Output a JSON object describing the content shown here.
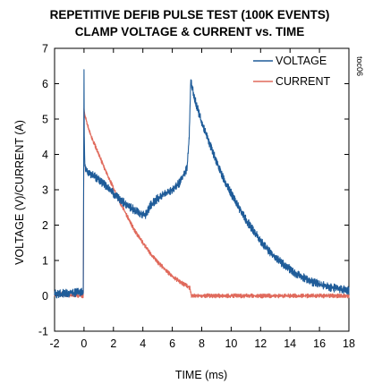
{
  "chart_data": {
    "type": "line",
    "title": "REPETITIVE DEFIB PULSE TEST (100K EVENTS)",
    "subtitle": "CLAMP VOLTAGE & CURRENT vs. TIME",
    "xlabel": "TIME (ms)",
    "ylabel": "VOLTAGE (V)/CURRENT (A)",
    "xlim": [
      -2,
      18
    ],
    "ylim": [
      -1,
      7
    ],
    "xticks": [
      "-2",
      "0",
      "2",
      "4",
      "6",
      "8",
      "10",
      "12",
      "14",
      "16",
      "18"
    ],
    "yticks": [
      "-1",
      "0",
      "1",
      "2",
      "3",
      "4",
      "5",
      "6",
      "7"
    ],
    "grid": false,
    "legend_position": "top-right",
    "figure_tag": "toc06",
    "series": [
      {
        "name": "VOLTAGE",
        "color": "#1f5c99",
        "x": [
          -2,
          -1,
          -0.05,
          0,
          0.02,
          0.05,
          0.1,
          0.3,
          0.6,
          1,
          1.5,
          2,
          2.5,
          3,
          3.5,
          4,
          4.2,
          4.5,
          5,
          5.5,
          6,
          6.5,
          7,
          7.15,
          7.25,
          7.35,
          7.5,
          8,
          8.5,
          9,
          9.5,
          10,
          10.5,
          11,
          11.5,
          12,
          12.5,
          13,
          13.5,
          14,
          14.5,
          15,
          15.5,
          16,
          16.5,
          17,
          17.5,
          18
        ],
        "y": [
          0.05,
          0.08,
          0.1,
          6.3,
          4.4,
          3.8,
          3.6,
          3.5,
          3.4,
          3.3,
          3.1,
          2.9,
          2.7,
          2.55,
          2.4,
          2.3,
          2.3,
          2.55,
          2.75,
          2.9,
          3.0,
          3.2,
          3.6,
          4.5,
          6.1,
          5.9,
          5.6,
          4.9,
          4.35,
          3.8,
          3.3,
          2.9,
          2.5,
          2.15,
          1.85,
          1.55,
          1.3,
          1.1,
          0.9,
          0.75,
          0.6,
          0.5,
          0.4,
          0.32,
          0.26,
          0.22,
          0.18,
          0.15
        ]
      },
      {
        "name": "CURRENT",
        "color": "#e06a5c",
        "x": [
          -2,
          -1,
          -0.05,
          0,
          0.05,
          0.2,
          0.5,
          1,
          1.5,
          2,
          2.5,
          3,
          3.5,
          4,
          4.5,
          5,
          5.5,
          6,
          6.5,
          7,
          7.2,
          7.3,
          7.5,
          8,
          10,
          12,
          14,
          16,
          18
        ],
        "y": [
          0.05,
          0.02,
          0.0,
          5.3,
          5.1,
          4.9,
          4.5,
          4.0,
          3.5,
          3.05,
          2.6,
          2.2,
          1.8,
          1.5,
          1.2,
          0.95,
          0.75,
          0.55,
          0.4,
          0.28,
          0.22,
          0.0,
          0.0,
          0.0,
          0.0,
          0.0,
          0.0,
          0.0,
          0.0
        ]
      }
    ]
  }
}
